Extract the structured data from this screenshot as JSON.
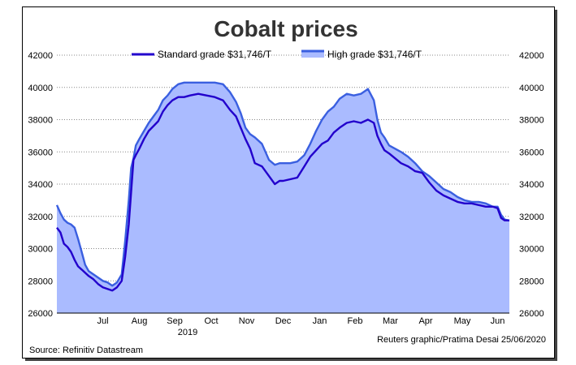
{
  "chart_data": {
    "type": "area",
    "title": "Cobalt prices",
    "legend": {
      "placement": "top-center",
      "standard_label": "Standard grade $31,746/T",
      "high_label": "High grade $31,746/T"
    },
    "yticks_left": [
      "42000",
      "40000",
      "38000",
      "36000",
      "34000",
      "32000",
      "30000",
      "28000",
      "26000"
    ],
    "yticks_right": [
      "42000",
      "40000",
      "38000",
      "36000",
      "34000",
      "32000",
      "30000",
      "28000",
      "26000"
    ],
    "ylim": [
      26000,
      42000
    ],
    "xlim": [
      "2019-06-07",
      "2020-06-25"
    ],
    "x_labels": [
      {
        "label": "Jul",
        "date": "2019-07-16"
      },
      {
        "label": "Aug",
        "date": "2019-08-16"
      },
      {
        "label": "Sep",
        "date": "2019-09-15"
      },
      {
        "label": "Oct",
        "date": "2019-10-16"
      },
      {
        "label": "Nov",
        "date": "2019-11-15"
      },
      {
        "label": "Dec",
        "date": "2019-12-16"
      },
      {
        "label": "Jan",
        "date": "2020-01-16"
      },
      {
        "label": "Feb",
        "date": "2020-02-15"
      },
      {
        "label": "Mar",
        "date": "2020-03-16"
      },
      {
        "label": "Apr",
        "date": "2020-04-15"
      },
      {
        "label": "May",
        "date": "2020-05-16"
      },
      {
        "label": "Jun",
        "date": "2020-06-15"
      }
    ],
    "year_label": {
      "label": "2019",
      "date": "2019-09-26"
    },
    "grid": true,
    "colors": {
      "standard": "#2200cc",
      "high": "#3a5fe0",
      "fill": "#aabbff",
      "grid": "#888888"
    },
    "series": [
      {
        "name": "Standard grade",
        "x": [
          "2019-06-07",
          "2019-06-10",
          "2019-06-13",
          "2019-06-16",
          "2019-06-19",
          "2019-06-22",
          "2019-06-25",
          "2019-06-28",
          "2019-07-01",
          "2019-07-04",
          "2019-07-08",
          "2019-07-12",
          "2019-07-16",
          "2019-07-20",
          "2019-07-24",
          "2019-07-28",
          "2019-08-01",
          "2019-08-04",
          "2019-08-07",
          "2019-08-09",
          "2019-08-11",
          "2019-08-13",
          "2019-08-16",
          "2019-08-20",
          "2019-08-24",
          "2019-08-28",
          "2019-09-01",
          "2019-09-05",
          "2019-09-09",
          "2019-09-13",
          "2019-09-18",
          "2019-09-23",
          "2019-09-28",
          "2019-10-05",
          "2019-10-12",
          "2019-10-19",
          "2019-10-26",
          "2019-11-01",
          "2019-11-06",
          "2019-11-10",
          "2019-11-14",
          "2019-11-18",
          "2019-11-22",
          "2019-11-28",
          "2019-12-04",
          "2019-12-09",
          "2019-12-13",
          "2019-12-16",
          "2019-12-22",
          "2019-12-28",
          "2020-01-03",
          "2020-01-08",
          "2020-01-13",
          "2020-01-18",
          "2020-01-23",
          "2020-01-28",
          "2020-02-02",
          "2020-02-08",
          "2020-02-14",
          "2020-02-20",
          "2020-02-26",
          "2020-03-02",
          "2020-03-05",
          "2020-03-08",
          "2020-03-11",
          "2020-03-15",
          "2020-03-20",
          "2020-03-25",
          "2020-03-31",
          "2020-04-06",
          "2020-04-12",
          "2020-04-18",
          "2020-04-24",
          "2020-04-30",
          "2020-05-06",
          "2020-05-12",
          "2020-05-18",
          "2020-05-24",
          "2020-05-30",
          "2020-06-05",
          "2020-06-11",
          "2020-06-15",
          "2020-06-18",
          "2020-06-21",
          "2020-06-25"
        ],
        "values": [
          31300,
          31000,
          30300,
          30100,
          29800,
          29300,
          28900,
          28700,
          28500,
          28300,
          28100,
          27800,
          27600,
          27500,
          27400,
          27600,
          28000,
          29500,
          31500,
          33500,
          35500,
          35800,
          36200,
          36800,
          37300,
          37600,
          37900,
          38500,
          38900,
          39200,
          39400,
          39400,
          39500,
          39600,
          39500,
          39400,
          39200,
          38600,
          38200,
          37500,
          36800,
          36200,
          35300,
          35100,
          34500,
          34000,
          34200,
          34200,
          34300,
          34400,
          35100,
          35700,
          36100,
          36500,
          36700,
          37200,
          37500,
          37800,
          37900,
          37800,
          38000,
          37800,
          37000,
          36500,
          36100,
          35900,
          35600,
          35300,
          35100,
          34800,
          34700,
          34100,
          33600,
          33300,
          33100,
          32900,
          32800,
          32800,
          32700,
          32600,
          32600,
          32500,
          31900,
          31750,
          31746
        ]
      },
      {
        "name": "High grade",
        "x": [
          "2019-06-07",
          "2019-06-10",
          "2019-06-13",
          "2019-06-16",
          "2019-06-19",
          "2019-06-22",
          "2019-06-25",
          "2019-06-28",
          "2019-07-01",
          "2019-07-04",
          "2019-07-08",
          "2019-07-12",
          "2019-07-16",
          "2019-07-20",
          "2019-07-24",
          "2019-07-28",
          "2019-08-01",
          "2019-08-04",
          "2019-08-07",
          "2019-08-09",
          "2019-08-11",
          "2019-08-13",
          "2019-08-16",
          "2019-08-20",
          "2019-08-24",
          "2019-08-28",
          "2019-09-01",
          "2019-09-05",
          "2019-09-09",
          "2019-09-13",
          "2019-09-18",
          "2019-09-23",
          "2019-09-28",
          "2019-10-05",
          "2019-10-12",
          "2019-10-19",
          "2019-10-26",
          "2019-11-01",
          "2019-11-06",
          "2019-11-10",
          "2019-11-14",
          "2019-11-18",
          "2019-11-22",
          "2019-11-28",
          "2019-12-04",
          "2019-12-09",
          "2019-12-13",
          "2019-12-16",
          "2019-12-22",
          "2019-12-28",
          "2020-01-03",
          "2020-01-08",
          "2020-01-13",
          "2020-01-18",
          "2020-01-23",
          "2020-01-28",
          "2020-02-02",
          "2020-02-08",
          "2020-02-14",
          "2020-02-20",
          "2020-02-26",
          "2020-03-02",
          "2020-03-05",
          "2020-03-08",
          "2020-03-11",
          "2020-03-15",
          "2020-03-20",
          "2020-03-25",
          "2020-03-31",
          "2020-04-06",
          "2020-04-12",
          "2020-04-18",
          "2020-04-24",
          "2020-04-30",
          "2020-05-06",
          "2020-05-12",
          "2020-05-18",
          "2020-05-24",
          "2020-05-30",
          "2020-06-05",
          "2020-06-11",
          "2020-06-15",
          "2020-06-18",
          "2020-06-21",
          "2020-06-25"
        ],
        "values": [
          32700,
          32200,
          31800,
          31600,
          31500,
          31300,
          30600,
          29800,
          29000,
          28600,
          28400,
          28200,
          28000,
          27900,
          27700,
          27900,
          28400,
          30500,
          33000,
          35000,
          35600,
          36400,
          36800,
          37300,
          37800,
          38200,
          38600,
          39200,
          39500,
          39900,
          40200,
          40300,
          40300,
          40300,
          40300,
          40300,
          40200,
          39700,
          39100,
          38400,
          37500,
          37100,
          36900,
          36500,
          35500,
          35200,
          35300,
          35300,
          35300,
          35400,
          35800,
          36500,
          37300,
          38000,
          38500,
          38800,
          39300,
          39600,
          39500,
          39600,
          39900,
          39200,
          38000,
          37200,
          36900,
          36400,
          36200,
          36000,
          35700,
          35300,
          34800,
          34500,
          34100,
          33700,
          33500,
          33200,
          33000,
          32900,
          32900,
          32800,
          32600,
          32600,
          32100,
          31800,
          31746
        ]
      }
    ],
    "notes": {
      "source": "Source: Refinitiv Datastream",
      "credit": "Reuters graphic/Pratima Desai 25/06/2020"
    }
  }
}
